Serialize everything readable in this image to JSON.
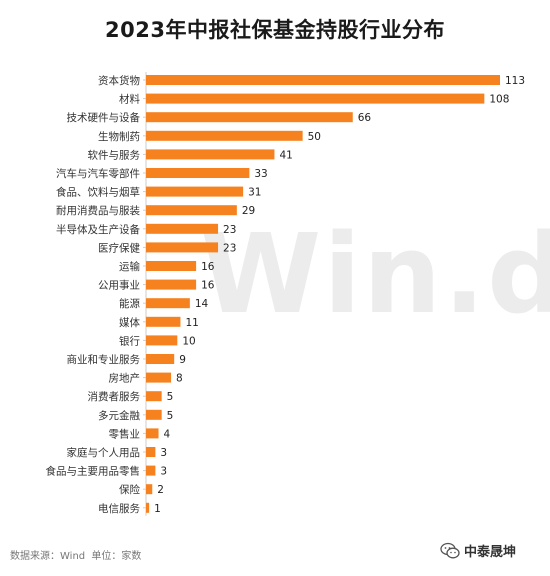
{
  "chart_data": {
    "type": "bar",
    "orientation": "horizontal",
    "title": "2023年中报社保基金持股行业分布",
    "categories": [
      "资本货物",
      "材料",
      "技术硬件与设备",
      "生物制药",
      "软件与服务",
      "汽车与汽车零部件",
      "食品、饮料与烟草",
      "耐用消费品与服装",
      "半导体及生产设备",
      "医疗保健",
      "运输",
      "公用事业",
      "能源",
      "媒体",
      "银行",
      "商业和专业服务",
      "房地产",
      "消费者服务",
      "多元金融",
      "零售业",
      "家庭与个人用品",
      "食品与主要用品零售",
      "保险",
      "电信服务"
    ],
    "values": [
      113,
      108,
      66,
      50,
      41,
      33,
      31,
      29,
      23,
      23,
      16,
      16,
      14,
      11,
      10,
      9,
      8,
      5,
      5,
      4,
      3,
      3,
      2,
      1
    ],
    "xlim": [
      0,
      113
    ],
    "grid": false,
    "legend": "none",
    "bar_color": "#F5821F"
  },
  "source": {
    "source_label": "数据来源：Wind",
    "unit_label": "单位：家数"
  },
  "watermark": {
    "background_text": "Win.d",
    "logo_text": "中泰晟坤"
  }
}
